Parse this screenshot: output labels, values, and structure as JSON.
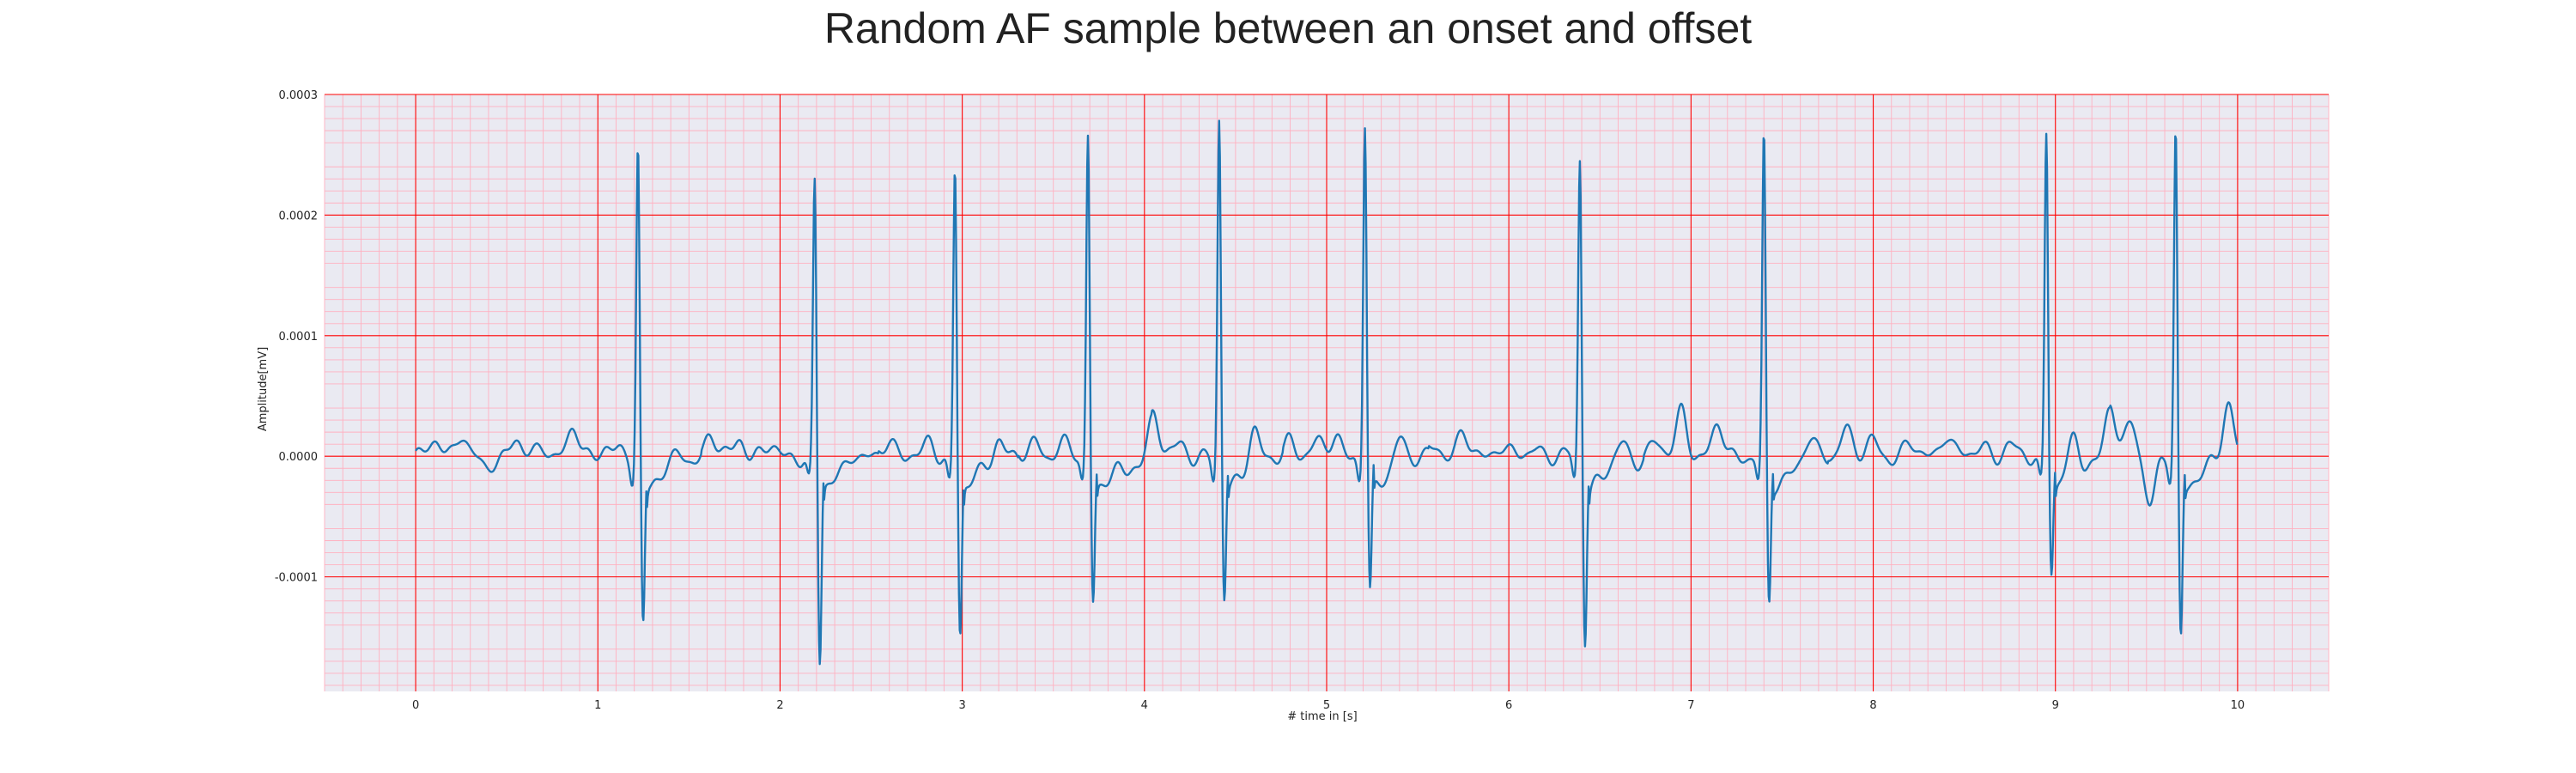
{
  "chart_data": {
    "type": "line",
    "title": "Random AF sample between an onset and offset",
    "xlabel": "# time in [s]",
    "ylabel": "Amplitude[mV]",
    "xlim": [
      -0.5,
      10.5
    ],
    "ylim": [
      -0.000195,
      0.0003
    ],
    "x_ticks": [
      0,
      1,
      2,
      3,
      4,
      5,
      6,
      7,
      8,
      9,
      10
    ],
    "x_tick_labels": [
      "0",
      "1",
      "2",
      "3",
      "4",
      "5",
      "6",
      "7",
      "8",
      "9",
      "10"
    ],
    "y_ticks": [
      -0.0001,
      0.0,
      0.0001,
      0.0002,
      0.0003
    ],
    "y_tick_labels": [
      "-0.0001",
      "0.0000",
      "0.0001",
      "0.0002",
      "0.0003"
    ],
    "grid": true,
    "minor_grid": true,
    "legend": "none",
    "colors": {
      "line": "#1f77b4",
      "plot_background": "#eaeaf2",
      "major_grid": "#ff0000",
      "minor_grid": "#ffb0c0",
      "text": "#222222"
    },
    "qrs_complexes": [
      {
        "time": 1.22,
        "r_peak": 0.00026,
        "s_trough": -0.00014
      },
      {
        "time": 2.19,
        "r_peak": 0.00023,
        "s_trough": -0.000175
      },
      {
        "time": 2.96,
        "r_peak": 0.000242,
        "s_trough": -0.000153
      },
      {
        "time": 3.69,
        "r_peak": 0.00027,
        "s_trough": -0.000122
      },
      {
        "time": 4.41,
        "r_peak": 0.00028,
        "s_trough": -0.000122
      },
      {
        "time": 5.21,
        "r_peak": 0.000276,
        "s_trough": -0.000118
      },
      {
        "time": 6.39,
        "r_peak": 0.00025,
        "s_trough": -0.000153
      },
      {
        "time": 7.4,
        "r_peak": 0.000265,
        "s_trough": -0.000128
      },
      {
        "time": 8.95,
        "r_peak": 0.000272,
        "s_trough": -9.7e-05
      },
      {
        "time": 9.66,
        "r_peak": 0.000271,
        "s_trough": -0.000153
      }
    ],
    "series": [
      {
        "baseline_bumps": [
          [
            0.12,
            1.5e-05
          ],
          [
            0.25,
            1.7e-05
          ],
          [
            0.38,
            -1e-05
          ],
          [
            0.55,
            1.2e-05
          ],
          [
            0.7,
            1e-05
          ],
          [
            0.87,
            2.2e-05
          ],
          [
            1.05,
            1e-05
          ],
          [
            1.45,
            8e-06
          ],
          [
            1.62,
            1.7e-05
          ],
          [
            1.78,
            1.5e-05
          ],
          [
            1.95,
            8e-06
          ],
          [
            2.4,
            1e-05
          ],
          [
            2.6,
            1.5e-05
          ],
          [
            2.82,
            1e-05
          ],
          [
            3.2,
            2.2e-05
          ],
          [
            3.4,
            1.2e-05
          ],
          [
            3.55,
            1e-05
          ],
          [
            3.9,
            -8e-06
          ],
          [
            4.05,
            3.5e-05
          ],
          [
            4.2,
            1e-05
          ],
          [
            4.6,
            3e-05
          ],
          [
            4.8,
            1.5e-05
          ],
          [
            4.95,
            1e-05
          ],
          [
            5.05,
            1.8e-05
          ],
          [
            5.4,
            2.5e-05
          ],
          [
            5.6,
            1e-05
          ],
          [
            5.75,
            1.8e-05
          ],
          [
            5.95,
            1e-05
          ],
          [
            6.15,
            8e-06
          ],
          [
            6.62,
            1.5e-05
          ],
          [
            6.8,
            1.2e-05
          ],
          [
            6.95,
            3.8e-05
          ],
          [
            7.15,
            2.5e-05
          ],
          [
            7.65,
            2e-05
          ],
          [
            7.85,
            2.5e-05
          ],
          [
            8.0,
            1.2e-05
          ],
          [
            8.2,
            1e-05
          ],
          [
            8.4,
            2e-05
          ],
          [
            8.6,
            1e-05
          ],
          [
            8.75,
            8e-06
          ],
          [
            9.1,
            2.5e-05
          ],
          [
            9.3,
            4.2e-05
          ],
          [
            9.42,
            3e-05
          ],
          [
            9.52,
            -4e-05
          ],
          [
            9.95,
            4.8e-05
          ]
        ]
      }
    ]
  }
}
